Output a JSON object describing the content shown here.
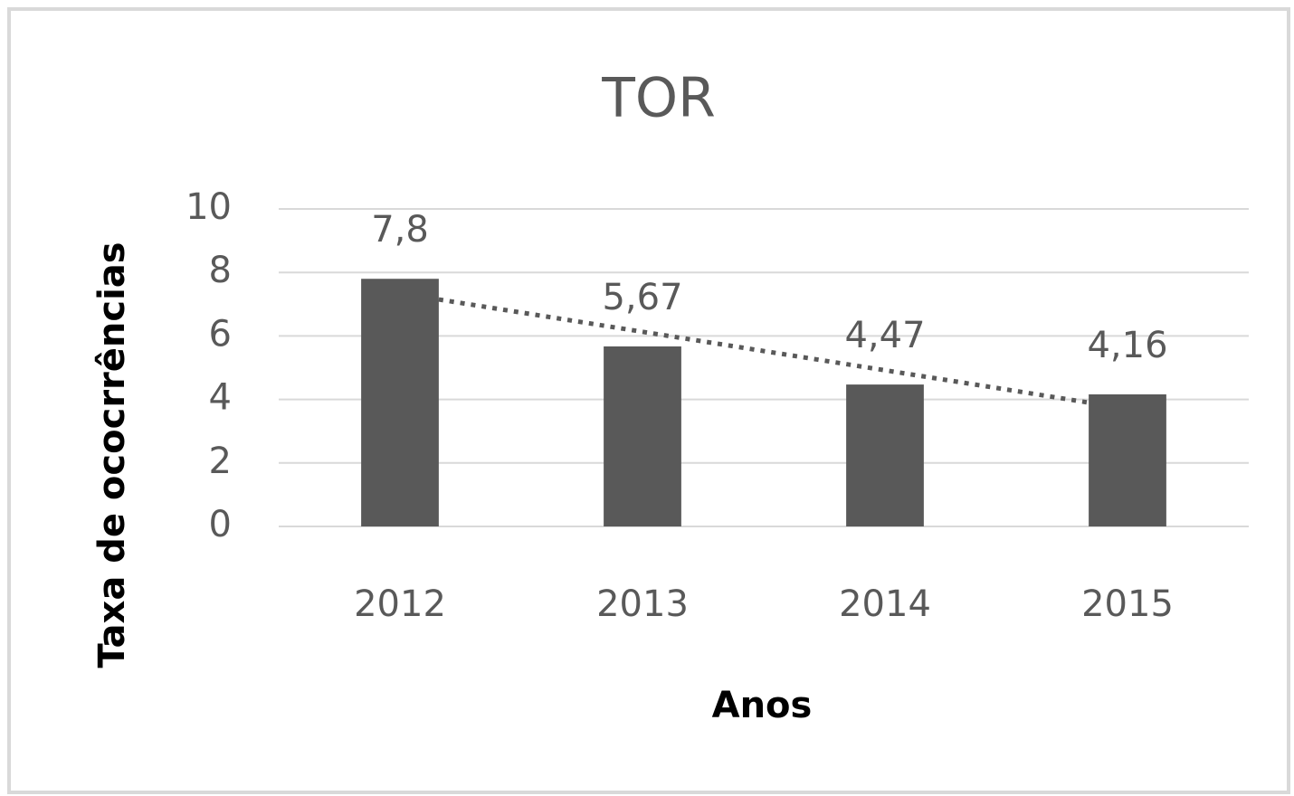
{
  "chart_data": {
    "type": "bar",
    "title": "TOR",
    "categories": [
      "2012",
      "2013",
      "2014",
      "2015"
    ],
    "values": [
      7.8,
      5.67,
      4.47,
      4.16
    ],
    "value_labels": [
      "7,8",
      "5,67",
      "4,47",
      "4,16"
    ],
    "color": "#595959",
    "trendline": "linear",
    "x_label": "Anos",
    "y_label": "Taxa de ococrrências",
    "ylim": [
      0,
      10
    ],
    "yticks": [
      0,
      2,
      4,
      6,
      8,
      10
    ],
    "grid": true
  }
}
